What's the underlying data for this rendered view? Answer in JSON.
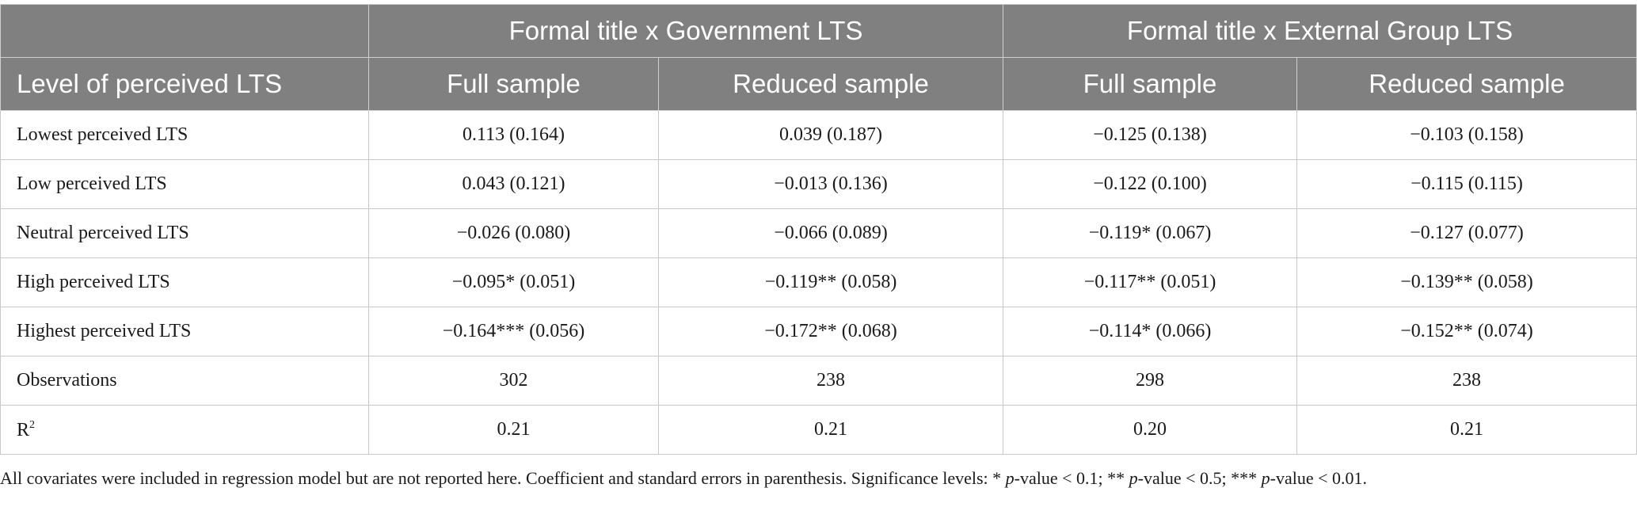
{
  "table": {
    "group_headers": [
      "",
      "Formal title x Government LTS",
      "Formal title x External Group LTS"
    ],
    "sub_headers": [
      "Level of perceived LTS",
      "Full sample",
      "Reduced sample",
      "Full sample",
      "Reduced sample"
    ],
    "rows": [
      {
        "label": "Lowest perceived LTS",
        "cells": [
          "0.113 (0.164)",
          "0.039 (0.187)",
          "−0.125 (0.138)",
          "−0.103 (0.158)"
        ]
      },
      {
        "label": "Low perceived LTS",
        "cells": [
          "0.043 (0.121)",
          "−0.013 (0.136)",
          "−0.122 (0.100)",
          "−0.115 (0.115)"
        ]
      },
      {
        "label": "Neutral perceived LTS",
        "cells": [
          "−0.026 (0.080)",
          "−0.066 (0.089)",
          "−0.119* (0.067)",
          "−0.127 (0.077)"
        ]
      },
      {
        "label": "High perceived LTS",
        "cells": [
          "−0.095* (0.051)",
          "−0.119** (0.058)",
          "−0.117** (0.051)",
          "−0.139** (0.058)"
        ]
      },
      {
        "label": "Highest perceived LTS",
        "cells": [
          "−0.164*** (0.056)",
          "−0.172** (0.068)",
          "−0.114* (0.066)",
          "−0.152** (0.074)"
        ]
      },
      {
        "label": "Observations",
        "cells": [
          "302",
          "238",
          "298",
          "238"
        ]
      }
    ],
    "r2_row": {
      "label_base": "R",
      "label_sup": "2",
      "cells": [
        "0.21",
        "0.21",
        "0.20",
        "0.21"
      ]
    }
  },
  "footnote": {
    "part1": "All covariates were included in regression model but are not reported here. Coefficient and standard errors in parenthesis. Significance levels: * ",
    "p1": "p",
    "part2": "-value < 0.1; ** ",
    "p2": "p",
    "part3": "-value < 0.5; *** ",
    "p3": "p",
    "part4": "-value < 0.01."
  },
  "colors": {
    "header_bg": "#808080",
    "header_text": "#ffffff",
    "border": "#c8c8c8"
  }
}
